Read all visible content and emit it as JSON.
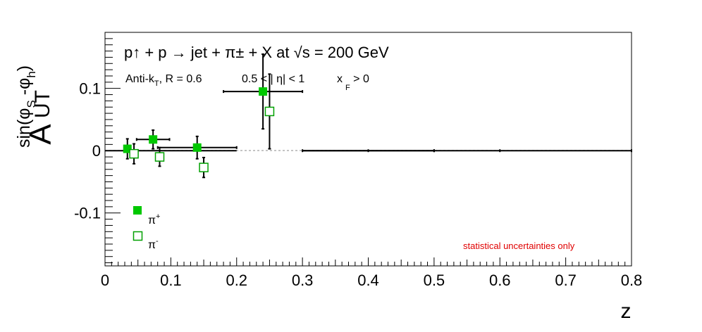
{
  "chart_data": {
    "type": "scatter",
    "title": "p↑ + p → jet + π± + X at  √s = 200 GeV",
    "subtitle": {
      "jet": "Anti-k",
      "jet_sub": "T",
      "jet_rest": ", R = 0.6",
      "eta": "0.5 < | η| < 1",
      "xf": "x",
      "xf_sub": "F",
      "xf_rest": " > 0"
    },
    "xlabel": "z",
    "ylabel": {
      "main": "A",
      "sub": "UT",
      "sup": "sin(φ",
      "sup_s": "S",
      "sup_mid": " -φ",
      "sup_h": "h",
      "sup_end": ")"
    },
    "xlim": [
      0,
      0.8
    ],
    "ylim": [
      -0.185,
      0.19
    ],
    "x_ticks": [
      "0",
      "0.1",
      "0.2",
      "0.3",
      "0.4",
      "0.5",
      "0.6",
      "0.7",
      "0.8"
    ],
    "x_tick_values": [
      0,
      0.1,
      0.2,
      0.3,
      0.4,
      0.5,
      0.6,
      0.7,
      0.8
    ],
    "y_ticks": [
      "0.1",
      "0",
      "-0.1"
    ],
    "y_tick_values": [
      0.1,
      0,
      -0.1
    ],
    "grid": false,
    "legend_position": "bottom-left",
    "note": "statistical uncertainties only",
    "colors": {
      "pi_plus": "#00c800",
      "pi_minus": "#00a000",
      "note": "#e00000",
      "zero_line": "#b0b0b0"
    },
    "series": [
      {
        "name": "π",
        "charge": "+",
        "marker": "filled-square",
        "points": [
          {
            "x": 0.034,
            "y": 0.003,
            "xerr": 0.0,
            "yerr": 0.016
          },
          {
            "x": 0.073,
            "y": 0.018,
            "xerr": 0.025,
            "yerr": 0.015
          },
          {
            "x": 0.14,
            "y": 0.005,
            "xerr": 0.06,
            "yerr": 0.018
          },
          {
            "x": 0.24,
            "y": 0.095,
            "xerr": 0.06,
            "yerr": 0.06
          },
          {
            "x": 0.4,
            "y": 0.0,
            "xerr": 0.1,
            "yerr": 0.0
          },
          {
            "x": 0.5,
            "y": 0.0,
            "xerr": 0.0,
            "yerr": 0.0
          },
          {
            "x": 0.6,
            "y": 0.0,
            "xerr": 0.0,
            "yerr": 0.0
          },
          {
            "x": 0.8,
            "y": 0.0,
            "xerr": 0.0,
            "yerr": 0.0
          }
        ]
      },
      {
        "name": "π",
        "charge": "-",
        "marker": "open-square",
        "points": [
          {
            "x": 0.044,
            "y": -0.005,
            "xerr": 0.0,
            "yerr": 0.016
          },
          {
            "x": 0.083,
            "y": -0.01,
            "xerr": 0.0,
            "yerr": 0.015
          },
          {
            "x": 0.15,
            "y": -0.027,
            "xerr": 0.0,
            "yerr": 0.016
          },
          {
            "x": 0.25,
            "y": 0.063,
            "xerr": 0.0,
            "yerr": 0.06
          }
        ]
      }
    ],
    "line_segments": [
      {
        "x0": 0.0,
        "x1": 0.2,
        "y": 0.0
      },
      {
        "x0": 0.3,
        "x1": 0.8,
        "y": 0.0
      }
    ]
  }
}
